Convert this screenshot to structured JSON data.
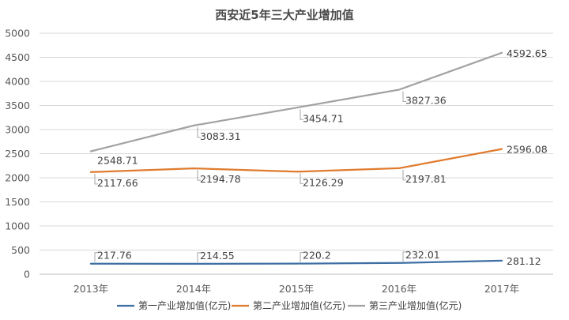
{
  "chart_data": {
    "type": "line",
    "title": "西安近5年三大产业增加值",
    "categories": [
      "2013年",
      "2014年",
      "2015年",
      "2016年",
      "2017年"
    ],
    "ylim": [
      0,
      5000
    ],
    "yticks": [
      0,
      500,
      1000,
      1500,
      2000,
      2500,
      3000,
      3500,
      4000,
      4500,
      5000
    ],
    "grid": true,
    "legend_position": "bottom",
    "series": [
      {
        "name": "第一产业增加值(亿元)",
        "color": "#3e6fa4",
        "values": [
          217.76,
          214.55,
          220.2,
          232.01,
          281.12
        ],
        "labels": [
          "217.76",
          "214.55",
          "220.2",
          "232.01",
          "281.12"
        ]
      },
      {
        "name": "第二产业增加值(亿元)",
        "color": "#e07b2f",
        "values": [
          2117.66,
          2194.78,
          2126.29,
          2197.81,
          2596.08
        ],
        "labels": [
          "2117.66",
          "2194.78",
          "2126.29",
          "2197.81",
          "2596.08"
        ]
      },
      {
        "name": "第三产业增加值(亿元)",
        "color": "#a3a3a3",
        "values": [
          2548.71,
          3083.31,
          3454.71,
          3827.36,
          4592.65
        ],
        "labels": [
          "2548.71",
          "3083.31",
          "3454.71",
          "3827.36",
          "4592.65"
        ]
      }
    ]
  }
}
